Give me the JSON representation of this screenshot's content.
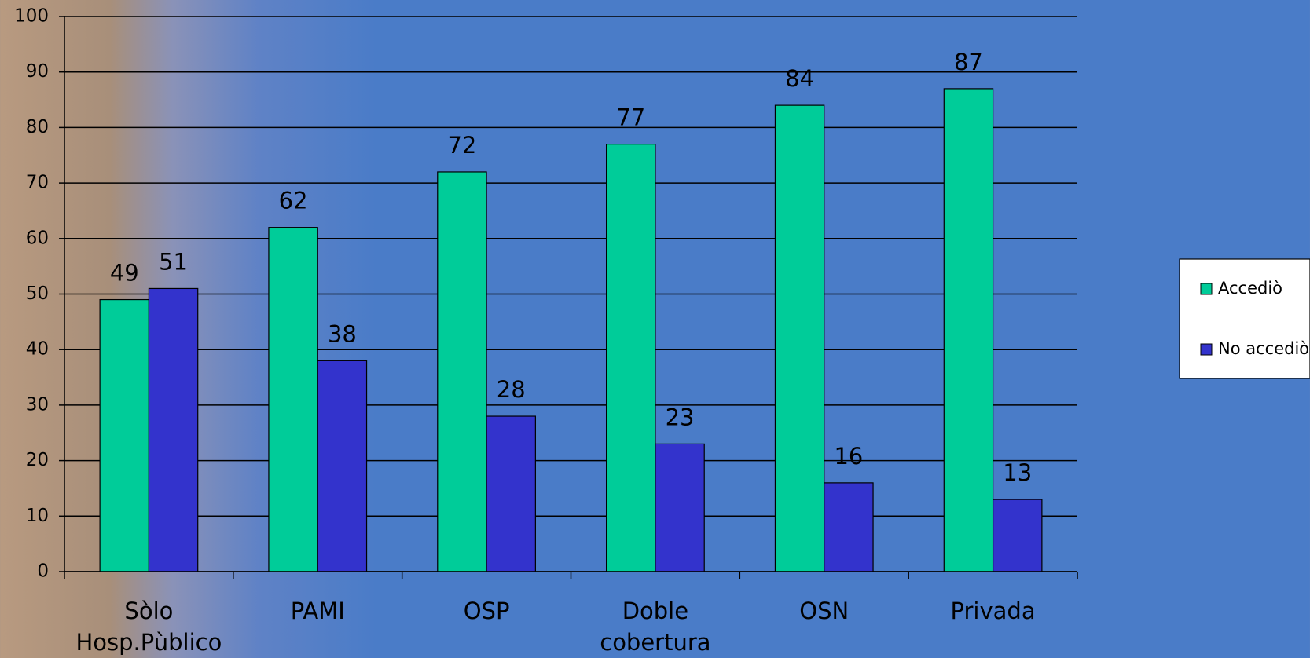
{
  "chart_data": {
    "type": "bar",
    "categories": [
      "Sòlo\nHosp.Pùblico",
      "PAMI",
      "OSP",
      "Doble\ncobertura",
      "OSN",
      "Privada"
    ],
    "series": [
      {
        "name": "Accediò",
        "color": "#00cc99",
        "values": [
          49,
          62,
          72,
          77,
          84,
          87
        ]
      },
      {
        "name": "No accediò",
        "color": "#3333cc",
        "values": [
          51,
          38,
          28,
          23,
          16,
          13
        ]
      }
    ],
    "ylim": [
      0,
      100
    ],
    "yticks": [
      0,
      10,
      20,
      30,
      40,
      50,
      60,
      70,
      80,
      90,
      100
    ],
    "grid": true,
    "legend": "right"
  }
}
